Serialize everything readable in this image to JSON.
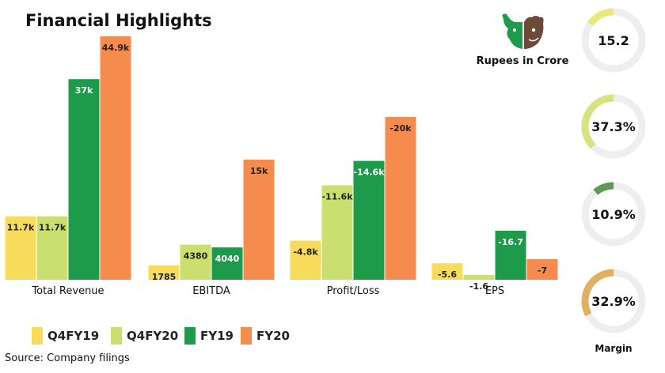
{
  "title": "Financial Highlights",
  "unit_note": "Rupees in Crore",
  "source": "Source: Company filings",
  "logo": "bull-bear-logo",
  "chart_data": {
    "type": "bar",
    "categories": [
      "Total Revenue",
      "EBITDA",
      "Profit/Loss",
      "EPS"
    ],
    "series": [
      {
        "name": "Q4FY19",
        "color": "#F7DC5C",
        "values": [
          11700,
          1785,
          -4800,
          -5.6
        ],
        "labels": [
          "11.7k",
          "1785",
          "-4.8k",
          "-5.6"
        ]
      },
      {
        "name": "Q4FY20",
        "color": "#CADF6E",
        "values": [
          11700,
          4380,
          -11600,
          -1.6
        ],
        "labels": [
          "11.7k",
          "4380",
          "-11.6k",
          "-1.6"
        ]
      },
      {
        "name": "FY19",
        "color": "#1E9A4B",
        "values": [
          37000,
          4040,
          -14600,
          -16.7
        ],
        "labels": [
          "37k",
          "4040",
          "-14.6k",
          "-16.7"
        ]
      },
      {
        "name": "FY20",
        "color": "#F58B4C",
        "values": [
          44900,
          15000,
          -20000,
          -7
        ],
        "labels": [
          "44.9k",
          "15k",
          "-20k",
          "-7"
        ]
      }
    ],
    "legend_position": "bottom-left",
    "grid": false,
    "note": "each category group is drawn on its own scale; Profit/Loss and EPS bars drawn by magnitude"
  },
  "gauges": [
    {
      "value": 15.2,
      "label": "15.2",
      "fill": 0.152,
      "color": "#E9E979"
    },
    {
      "value": 37.3,
      "label": "37.3%",
      "fill": 0.373,
      "color": "#D8E27E"
    },
    {
      "value": 10.9,
      "label": "10.9%",
      "fill": 0.109,
      "color": "#5E9A55"
    },
    {
      "value": 32.9,
      "label": "32.9%",
      "fill": 0.329,
      "color": "#E0B060"
    }
  ],
  "gauge_caption": "Margin"
}
